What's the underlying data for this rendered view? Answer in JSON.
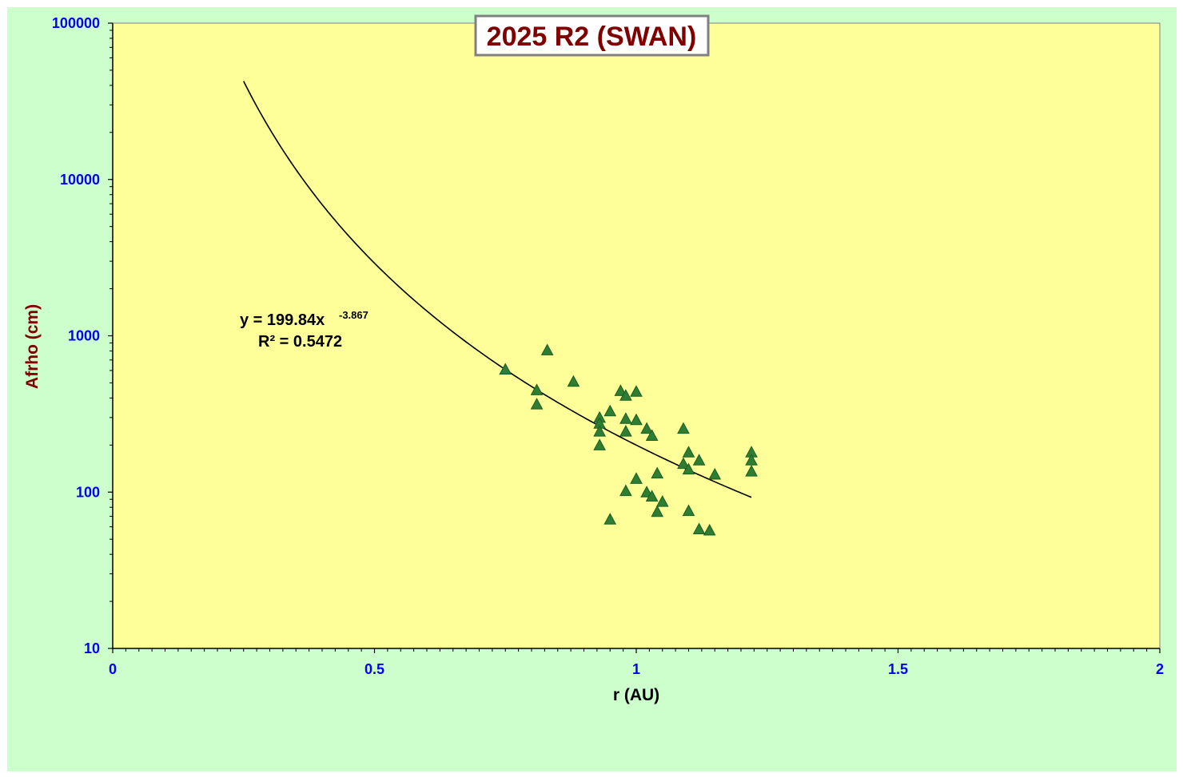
{
  "chart_data": {
    "type": "scatter",
    "title": "2025 R2 (SWAN)",
    "xlabel": "r (AU)",
    "ylabel": "Afrho (cm)",
    "xlim": [
      0,
      2
    ],
    "ylim": [
      10,
      100000
    ],
    "yscale": "log",
    "x_ticks": [
      "0",
      "0.5",
      "1",
      "1.5",
      "2"
    ],
    "y_ticks": [
      "10",
      "100",
      "1000",
      "10000",
      "100000"
    ],
    "grid": false,
    "legend": "none",
    "series": [
      {
        "marker": "triangle",
        "points": [
          {
            "x": 0.75,
            "y": 610
          },
          {
            "x": 0.81,
            "y": 450
          },
          {
            "x": 0.81,
            "y": 365
          },
          {
            "x": 0.83,
            "y": 810
          },
          {
            "x": 0.88,
            "y": 510
          },
          {
            "x": 0.93,
            "y": 300
          },
          {
            "x": 0.93,
            "y": 275
          },
          {
            "x": 0.93,
            "y": 245
          },
          {
            "x": 0.93,
            "y": 200
          },
          {
            "x": 0.95,
            "y": 330
          },
          {
            "x": 0.95,
            "y": 67
          },
          {
            "x": 0.97,
            "y": 445
          },
          {
            "x": 0.98,
            "y": 415
          },
          {
            "x": 0.98,
            "y": 295
          },
          {
            "x": 0.98,
            "y": 245
          },
          {
            "x": 0.98,
            "y": 102
          },
          {
            "x": 1.0,
            "y": 440
          },
          {
            "x": 1.0,
            "y": 290
          },
          {
            "x": 1.0,
            "y": 122
          },
          {
            "x": 1.02,
            "y": 255
          },
          {
            "x": 1.02,
            "y": 100
          },
          {
            "x": 1.03,
            "y": 230
          },
          {
            "x": 1.03,
            "y": 94
          },
          {
            "x": 1.04,
            "y": 132
          },
          {
            "x": 1.04,
            "y": 75
          },
          {
            "x": 1.05,
            "y": 87
          },
          {
            "x": 1.09,
            "y": 255
          },
          {
            "x": 1.09,
            "y": 152
          },
          {
            "x": 1.1,
            "y": 180
          },
          {
            "x": 1.1,
            "y": 140
          },
          {
            "x": 1.1,
            "y": 76
          },
          {
            "x": 1.12,
            "y": 160
          },
          {
            "x": 1.12,
            "y": 58
          },
          {
            "x": 1.14,
            "y": 57
          },
          {
            "x": 1.15,
            "y": 130
          },
          {
            "x": 1.22,
            "y": 180
          },
          {
            "x": 1.22,
            "y": 160
          },
          {
            "x": 1.22,
            "y": 136
          }
        ]
      }
    ],
    "trendline": {
      "type": "power",
      "a": 199.84,
      "b": -3.867,
      "x_range": [
        0.25,
        1.22
      ],
      "equation_main": "y = 199.84x",
      "equation_exp": "-3.867",
      "r2_label": "R² = 0.5472"
    },
    "colors": {
      "frame_bg": "#ccffcc",
      "plot_bg": "#ffff99",
      "marker": "#2e7d32",
      "marker_edge": "#1b5e20",
      "tick_text": "#0000ff",
      "ylabel": "#800000",
      "xlabel": "#000000",
      "title_text": "#800000",
      "title_border": "#808080",
      "axis": "#000000"
    }
  }
}
